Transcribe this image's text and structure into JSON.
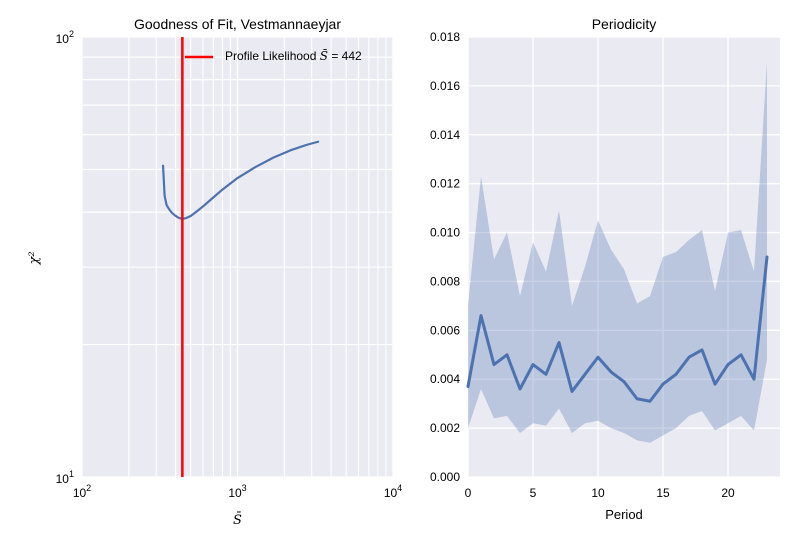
{
  "chart_data": [
    {
      "type": "line",
      "title": "Goodness of Fit, Vestmannaeyjar",
      "xlabel": "S̄",
      "ylabel": "χ²",
      "xscale": "log",
      "yscale": "log",
      "xlim": [
        100,
        10000
      ],
      "ylim": [
        10,
        100
      ],
      "xticks": [
        {
          "value": 100,
          "base": "10",
          "exp": "2"
        },
        {
          "value": 1000,
          "base": "10",
          "exp": "3"
        },
        {
          "value": 10000,
          "base": "10",
          "exp": "4"
        }
      ],
      "yticks": [
        {
          "value": 10,
          "base": "10",
          "exp": "1"
        },
        {
          "value": 100,
          "base": "10",
          "exp": "2"
        }
      ],
      "grid": true,
      "legend_position": "top-right",
      "colors": {
        "curve": "#4c72b0",
        "vline": "#ff0000",
        "background": "#eaeaf2",
        "grid": "#ffffff"
      },
      "series": [
        {
          "name": "",
          "x": [
            332,
            340,
            350,
            365,
            380,
            400,
            420,
            442,
            470,
            500,
            550,
            600,
            700,
            800,
            1000,
            1300,
            1700,
            2200,
            2800,
            3300
          ],
          "y": [
            51,
            43.5,
            41.5,
            40.5,
            39.8,
            39.2,
            38.8,
            38.6,
            38.8,
            39.2,
            40.2,
            41.2,
            43.2,
            45.0,
            47.8,
            50.6,
            53.2,
            55.3,
            56.9,
            57.8
          ]
        }
      ],
      "vline": {
        "x": 442,
        "legend_label": "Profile Likelihood",
        "legend_symbol": "S̄",
        "legend_value": "= 442"
      }
    },
    {
      "type": "line",
      "title": "Periodicity",
      "xlabel": "Period",
      "ylabel": "",
      "xlim": [
        0,
        24
      ],
      "ylim": [
        0,
        0.018
      ],
      "xticks": [
        0,
        5,
        10,
        15,
        20
      ],
      "yticks": [
        "0.000",
        "0.002",
        "0.004",
        "0.006",
        "0.008",
        "0.010",
        "0.012",
        "0.014",
        "0.016",
        "0.018"
      ],
      "grid": true,
      "colors": {
        "line": "#4c72b0",
        "band": "#4c72b0",
        "background": "#eaeaf2",
        "grid": "#ffffff"
      },
      "series": [
        {
          "name": "",
          "x": [
            0,
            1,
            2,
            3,
            4,
            5,
            6,
            7,
            8,
            9,
            10,
            11,
            12,
            13,
            14,
            15,
            16,
            17,
            18,
            19,
            20,
            21,
            22,
            23
          ],
          "y": [
            0.0037,
            0.0066,
            0.0046,
            0.005,
            0.0036,
            0.0046,
            0.0042,
            0.0055,
            0.0035,
            0.0042,
            0.0049,
            0.0043,
            0.0039,
            0.0032,
            0.0031,
            0.0038,
            0.0042,
            0.0049,
            0.0052,
            0.0038,
            0.0046,
            0.005,
            0.004,
            0.009
          ],
          "lower": [
            0.002,
            0.0036,
            0.0024,
            0.0025,
            0.0018,
            0.0022,
            0.0021,
            0.0028,
            0.0018,
            0.0022,
            0.0023,
            0.002,
            0.0018,
            0.0015,
            0.0014,
            0.0017,
            0.002,
            0.0025,
            0.0027,
            0.0019,
            0.0022,
            0.0025,
            0.0019,
            0.0048
          ],
          "upper": [
            0.007,
            0.0123,
            0.0089,
            0.01,
            0.0074,
            0.0096,
            0.0084,
            0.0109,
            0.007,
            0.0086,
            0.0105,
            0.0093,
            0.0085,
            0.0071,
            0.0074,
            0.009,
            0.0092,
            0.0097,
            0.0101,
            0.0076,
            0.01,
            0.0101,
            0.0084,
            0.017
          ]
        }
      ]
    }
  ]
}
